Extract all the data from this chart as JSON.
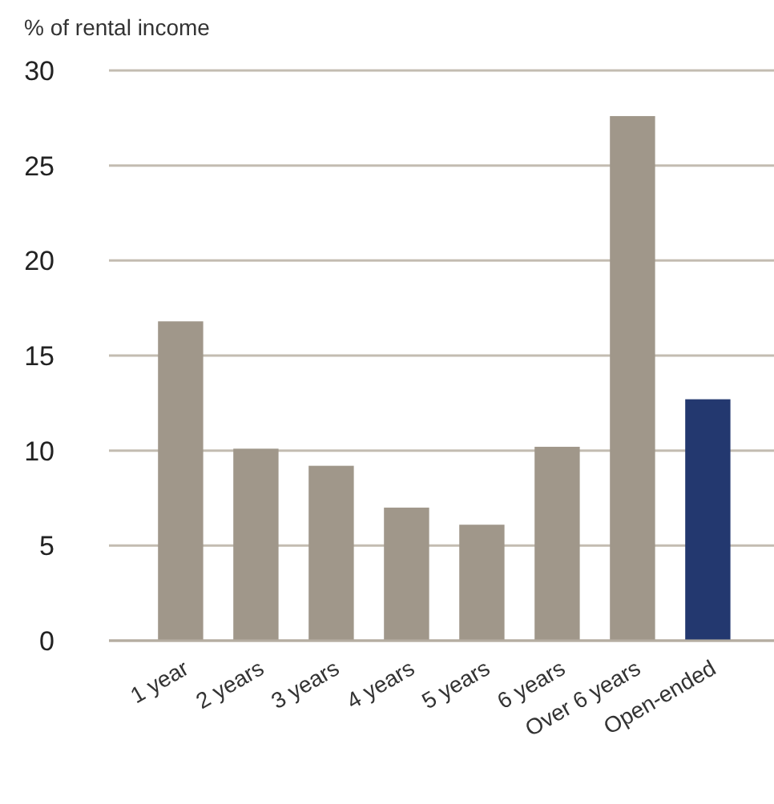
{
  "chart_data": {
    "type": "bar",
    "ylabel": "% of rental income",
    "categories": [
      "1 year",
      "2 years",
      "3 years",
      "4 years",
      "5 years",
      "6 years",
      "Over 6 years",
      "Open-ended"
    ],
    "values": [
      16.8,
      10.1,
      9.2,
      7.0,
      6.1,
      10.2,
      27.6,
      12.7
    ],
    "colors": [
      "#a0978a",
      "#a0978a",
      "#a0978a",
      "#a0978a",
      "#a0978a",
      "#a0978a",
      "#a0978a",
      "#23386f"
    ],
    "ylim": [
      0,
      30
    ],
    "yticks": [
      0,
      5,
      10,
      15,
      20,
      25,
      30
    ],
    "grid": "y"
  }
}
